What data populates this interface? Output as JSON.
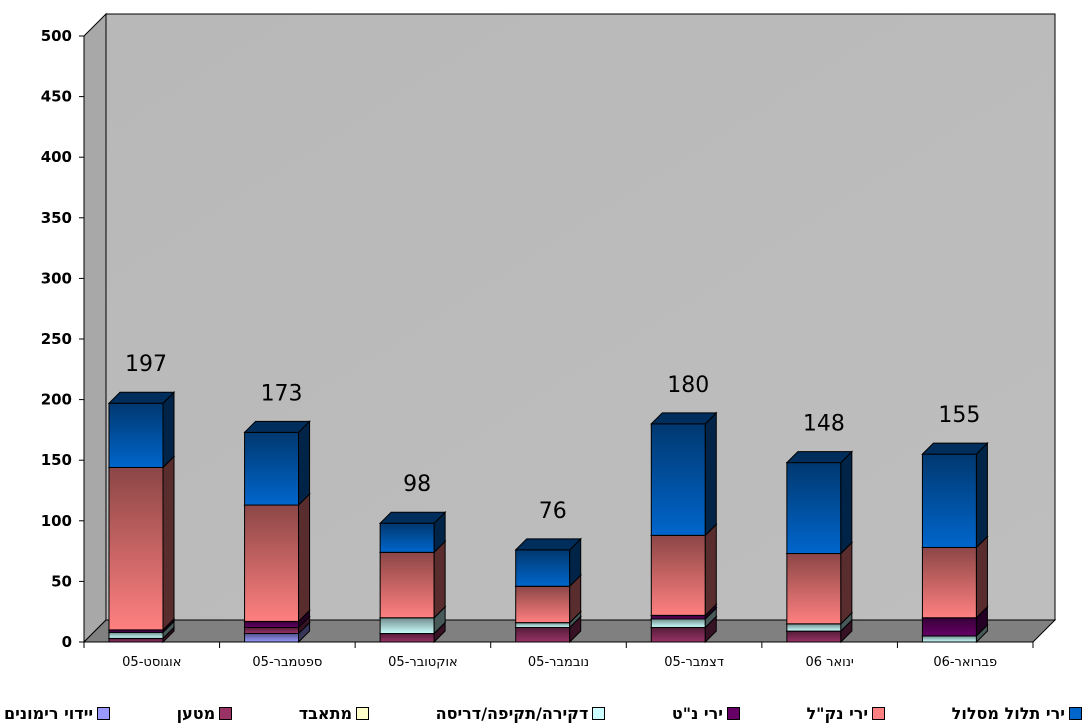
{
  "chart_data": {
    "type": "bar",
    "stacked": true,
    "three_d": true,
    "ylim": [
      0,
      500
    ],
    "yticks": [
      0,
      50,
      100,
      150,
      200,
      250,
      300,
      350,
      400,
      450,
      500
    ],
    "categories": [
      "אוגוסט-05",
      "ספטמבר-05",
      "אוקטובר-05",
      "נובמבר-05",
      "דצמבר-05",
      "ינואר 06",
      "פברואר-06"
    ],
    "totals": [
      "197",
      "173",
      "98",
      "76",
      "180",
      "148",
      "155"
    ],
    "series": [
      {
        "name": "יידוי רימונים",
        "color": "#9999ff",
        "values": [
          0,
          7,
          0,
          0,
          0,
          0,
          0
        ]
      },
      {
        "name": "מטען",
        "color": "#993366",
        "values": [
          3,
          5,
          7,
          12,
          12,
          9,
          0
        ]
      },
      {
        "name": "מתאבד",
        "color": "#ffffcc",
        "values": [
          0,
          0,
          0,
          0,
          0,
          0,
          0
        ]
      },
      {
        "name": "דקירה/תקיפה/דריסה",
        "color": "#ccffff",
        "values": [
          5,
          0,
          13,
          4,
          7,
          6,
          5
        ]
      },
      {
        "name": "ירי נ\"ט",
        "color": "#660066",
        "values": [
          2,
          5,
          0,
          0,
          3,
          0,
          15
        ]
      },
      {
        "name": "ירי נק\"ל",
        "color": "#ff8080",
        "values": [
          134,
          96,
          54,
          30,
          66,
          58,
          58
        ]
      },
      {
        "name": "ירי תלול מסלול",
        "color": "#0066cc",
        "values": [
          53,
          60,
          24,
          30,
          92,
          75,
          77
        ]
      }
    ]
  }
}
